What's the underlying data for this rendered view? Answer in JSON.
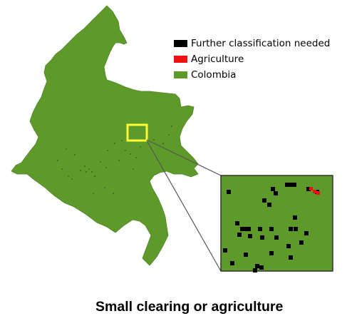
{
  "legend": {
    "items": [
      {
        "label": "Further classification needed",
        "color": "#000000"
      },
      {
        "label": "Agriculture",
        "color": "#ee1111"
      },
      {
        "label": "Colombia",
        "color": "#5e9a2a"
      }
    ]
  },
  "caption": "Small clearing or agriculture",
  "colors": {
    "country_fill": "#5e9a2a",
    "highlight_box": "#ffff33",
    "connector_line": "#555555",
    "inset_border": "#333333",
    "unclassified_pixel": "#000000",
    "agriculture_pixel": "#ee1111"
  },
  "inset": {
    "further_classification_pixel_count": 34,
    "agriculture_pixel_count": 3
  }
}
